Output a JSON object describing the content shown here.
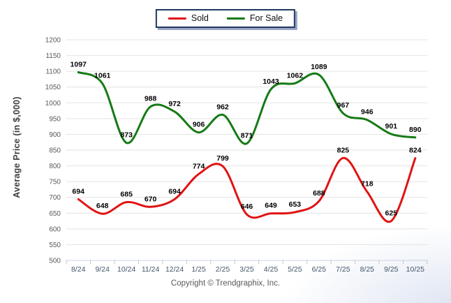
{
  "chart_data": {
    "type": "line",
    "title": "",
    "ylabel": "Average Price (in $,000)",
    "xlabel": "",
    "ylim": [
      500,
      1200
    ],
    "ytick_step": 50,
    "grid": "horizontal",
    "smooth": true,
    "legend_position": "top-center",
    "categories": [
      "8/24",
      "9/24",
      "10/24",
      "11/24",
      "12/24",
      "1/25",
      "2/25",
      "3/25",
      "4/25",
      "5/25",
      "6/25",
      "7/25",
      "8/25",
      "9/25",
      "10/25"
    ],
    "series": [
      {
        "name": "Sold",
        "color": "#e01414",
        "values": [
          694,
          648,
          685,
          670,
          694,
          774,
          799,
          646,
          649,
          653,
          688,
          825,
          718,
          625,
          824
        ]
      },
      {
        "name": "For Sale",
        "color": "#157a15",
        "values": [
          1097,
          1061,
          873,
          988,
          972,
          906,
          962,
          871,
          1043,
          1062,
          1089,
          967,
          946,
          901,
          890
        ]
      }
    ],
    "colors": {
      "gridline": "#e3e3e3",
      "axis_line": "#c9d2e0",
      "tick_mark": "#b7c1d6",
      "y_tick_label": "#595959",
      "x_tick_label": "#44546a",
      "data_label": "#000000"
    }
  },
  "footer": {
    "copyright": "Copyright © Trendgraphix, Inc."
  }
}
